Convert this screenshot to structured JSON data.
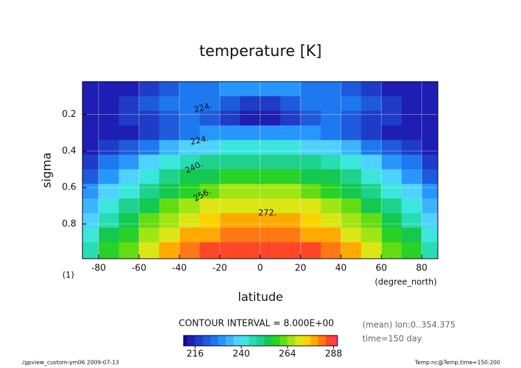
{
  "chart_data": {
    "type": "contour",
    "title": "temperature [K]",
    "xlabel": "latitude",
    "ylabel": "sigma",
    "x_unit": "(degree_north)",
    "y_unit": "(1)",
    "x": [
      -85,
      -75,
      -65,
      -55,
      -45,
      -35,
      -25,
      -15,
      -5,
      5,
      15,
      25,
      35,
      45,
      55,
      65,
      75,
      85
    ],
    "y": [
      0.06,
      0.14,
      0.22,
      0.3,
      0.38,
      0.46,
      0.54,
      0.62,
      0.7,
      0.78,
      0.86,
      0.94
    ],
    "z": [
      [
        212,
        213,
        215,
        218,
        222,
        225,
        227,
        228,
        229,
        229,
        228,
        227,
        225,
        222,
        218,
        215,
        213,
        212
      ],
      [
        214,
        215,
        218,
        221,
        225,
        227,
        226,
        222,
        219,
        219,
        222,
        226,
        227,
        225,
        221,
        218,
        215,
        214
      ],
      [
        213,
        214,
        216,
        219,
        223,
        225,
        222,
        216,
        212,
        212,
        216,
        222,
        225,
        223,
        219,
        216,
        214,
        213
      ],
      [
        214,
        214,
        215,
        218,
        223,
        226,
        228,
        230,
        231,
        231,
        230,
        228,
        226,
        223,
        218,
        215,
        214,
        214
      ],
      [
        214,
        216,
        221,
        227,
        232,
        236,
        239,
        240,
        241,
        241,
        240,
        239,
        236,
        232,
        227,
        221,
        216,
        214
      ],
      [
        216,
        224,
        230,
        236,
        241,
        245,
        248,
        249,
        250,
        250,
        249,
        248,
        245,
        241,
        236,
        230,
        224,
        216
      ],
      [
        222,
        230,
        236,
        243,
        248,
        252,
        255,
        257,
        258,
        258,
        257,
        255,
        252,
        248,
        243,
        236,
        230,
        222
      ],
      [
        228,
        236,
        243,
        249,
        255,
        259,
        262,
        264,
        265,
        265,
        264,
        262,
        259,
        255,
        249,
        243,
        236,
        228
      ],
      [
        234,
        242,
        248,
        255,
        261,
        265,
        268,
        270,
        271,
        271,
        270,
        268,
        265,
        261,
        255,
        248,
        242,
        234
      ],
      [
        239,
        247,
        254,
        260,
        266,
        271,
        274,
        276,
        277,
        277,
        276,
        274,
        271,
        266,
        260,
        254,
        247,
        239
      ],
      [
        243,
        252,
        259,
        265,
        271,
        276,
        279,
        281,
        282,
        282,
        281,
        279,
        276,
        271,
        265,
        259,
        252,
        243
      ],
      [
        247,
        256,
        263,
        270,
        276,
        281,
        284,
        286,
        287,
        287,
        286,
        284,
        281,
        276,
        270,
        263,
        256,
        247
      ]
    ],
    "xlim": [
      -88,
      88
    ],
    "ylim": [
      0.99,
      0.02
    ],
    "xticks": [
      -80,
      -60,
      -40,
      -20,
      0,
      20,
      40,
      60,
      80
    ],
    "yticks": [
      0.2,
      0.4,
      0.6,
      0.8
    ],
    "grid": true,
    "levels": [
      212,
      216,
      220,
      224,
      228,
      232,
      236,
      240,
      244,
      248,
      252,
      256,
      260,
      264,
      268,
      272,
      276,
      280,
      284,
      288
    ],
    "colors": [
      "#1a0a96",
      "#1e1eb4",
      "#1e3cc8",
      "#1e5adc",
      "#1e78f0",
      "#2896ff",
      "#3cb4ff",
      "#50d2ff",
      "#3ce6dc",
      "#28dcb4",
      "#1ed28c",
      "#14c850",
      "#28d228",
      "#64dc14",
      "#a0e614",
      "#dce614",
      "#ffd200",
      "#ffaa00",
      "#ff7814",
      "#ff4628",
      "#ff3c64"
    ],
    "clim": [
      210,
      290
    ],
    "cticks": [
      216,
      240,
      264,
      288
    ],
    "contour_labels": [
      "224.",
      "224.",
      "240.",
      "256.",
      "272."
    ],
    "contour_interval": "CONTOUR INTERVAL = 8.000E+00",
    "notes": [
      "(mean) lon:0..354.375",
      "time=150 day"
    ],
    "footer_left": "./gpview_custom-ym06  2009-07-13",
    "footer_right": "Temp.nc@Temp,time=150:200"
  }
}
